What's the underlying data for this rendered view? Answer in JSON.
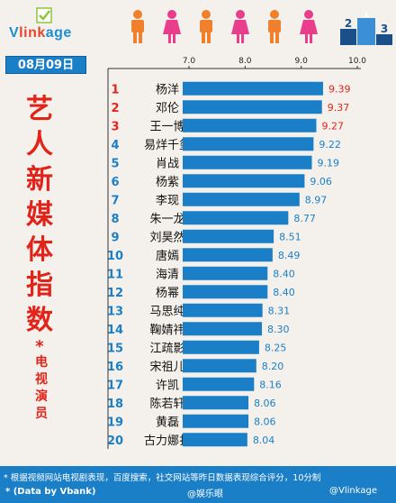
{
  "brand": {
    "logo_text_a": "V",
    "logo_text_b": "link",
    "logo_text_c": "age"
  },
  "podium_digits": [
    "2",
    "1",
    "3"
  ],
  "date": "08月09日",
  "title_chars": [
    "艺",
    "人",
    "新",
    "媒",
    "体",
    "指",
    "数"
  ],
  "subtitle_star": "*",
  "subtitle_chars": [
    "电",
    "视",
    "演",
    "员"
  ],
  "chart_data": {
    "type": "bar",
    "orientation": "horizontal",
    "xlim": [
      7.0,
      10.0
    ],
    "x_ticks": [
      "7.0",
      "8.0",
      "9.0",
      "10.0"
    ],
    "ranks": [
      "1",
      "2",
      "3",
      "4",
      "5",
      "6",
      "7",
      "8",
      "9",
      "10",
      "11",
      "12",
      "13",
      "14",
      "15",
      "16",
      "17",
      "18",
      "19",
      "20"
    ],
    "categories": [
      "杨洋",
      "邓伦",
      "王一博",
      "易烊千玺",
      "肖战",
      "杨紫",
      "李现",
      "朱一龙",
      "刘昊然",
      "唐嫣",
      "海清",
      "杨幂",
      "马思纯",
      "鞠婧祎",
      "江疏影",
      "宋祖儿",
      "许凯",
      "陈若轩",
      "黄磊",
      "古力娜扎"
    ],
    "values": [
      9.39,
      9.37,
      9.27,
      9.22,
      9.19,
      9.06,
      8.97,
      8.77,
      8.51,
      8.49,
      8.4,
      8.4,
      8.31,
      8.3,
      8.25,
      8.2,
      8.16,
      8.06,
      8.06,
      8.04
    ],
    "value_labels": [
      "9.39",
      "9.37",
      "9.27",
      "9.22",
      "9.19",
      "9.06",
      "8.97",
      "8.77",
      "8.51",
      "8.49",
      "8.40",
      "8.40",
      "8.31",
      "8.30",
      "8.25",
      "8.20",
      "8.16",
      "8.06",
      "8.06",
      "8.04"
    ],
    "colors": {
      "bar": "#1b7fc8",
      "top3_rank": "#e2231a",
      "rank": "#1b7fc8",
      "top3_value": "#e2231a",
      "value": "#1b7fc8"
    }
  },
  "footer": {
    "note": "* 根据视频网站电视剧表现，百度搜索，社交网站等昨日数据表现综合评分，10分制",
    "source": "* (Data by Vbank)",
    "watermark1": "@娱乐眼",
    "watermark2": "@Vlinkage"
  }
}
